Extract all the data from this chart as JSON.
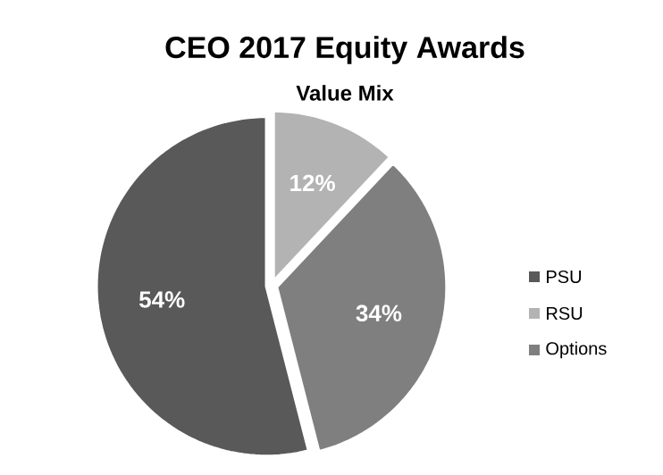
{
  "chart_data": {
    "type": "pie",
    "title": "CEO 2017 Equity Awards",
    "subtitle": "Value Mix",
    "categories": [
      "PSU",
      "RSU",
      "Options"
    ],
    "values": [
      54,
      12,
      34
    ],
    "colors": [
      "#595959",
      "#b3b3b3",
      "#7f7f7f"
    ],
    "value_labels": [
      "54%",
      "12%",
      "34%"
    ],
    "legend": "right"
  }
}
